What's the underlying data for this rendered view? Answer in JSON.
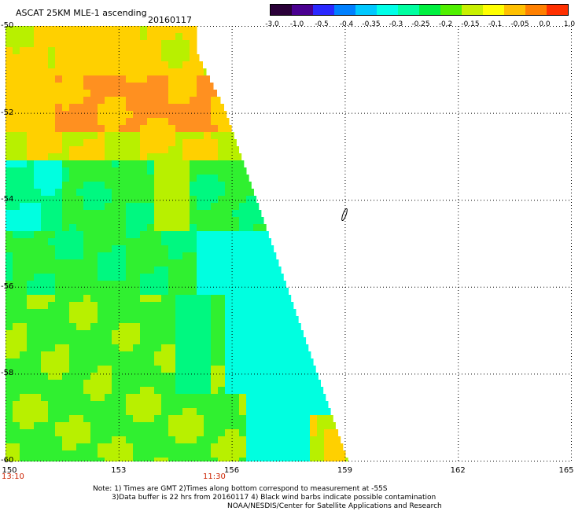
{
  "header": {
    "title": "ASCAT 25KM MLE-1 ascending",
    "date": "20160117"
  },
  "colorbar": {
    "labels": [
      "-3.0",
      "-1.0",
      "-0.5",
      "-0.4",
      "-0.35",
      "-0.3",
      "-0.25",
      "-0.2",
      "-0.15",
      "-0.1",
      "-0.05",
      "0.0",
      "1.0"
    ],
    "colors": [
      "#2a0038",
      "#4a0090",
      "#2a28ff",
      "#0080ff",
      "#00c8ff",
      "#00ffe8",
      "#00ffa0",
      "#00f040",
      "#50f000",
      "#c8f000",
      "#ffff00",
      "#ffc000",
      "#ff8000",
      "#ff3000"
    ]
  },
  "map": {
    "lat_labels": [
      "-50",
      "-52",
      "-54",
      "-56",
      "-58",
      "-60"
    ],
    "lon_labels": [
      "150",
      "153",
      "156",
      "159",
      "162",
      "165"
    ],
    "lat_range": [
      -60,
      -50
    ],
    "lon_range": [
      150,
      165
    ],
    "time_labels": [
      "13:10",
      "11:30"
    ],
    "swath_colors": {
      "high": "#ff9020",
      "mid_high": "#ffd000",
      "mid": "#b8f000",
      "low": "#30f030",
      "lower": "#00f880",
      "lowest": "#00ffe0"
    }
  },
  "footer": {
    "note_line1": "Note: 1) Times are GMT 2)Times along bottom correspond to measurement at -55S",
    "note_line2": "3)Data buffer is 22 hrs from 20160117 4) Black wind barbs indicate possible contamination",
    "note_line3": "NOAA/NESDIS/Center for Satellite Applications and Research"
  }
}
